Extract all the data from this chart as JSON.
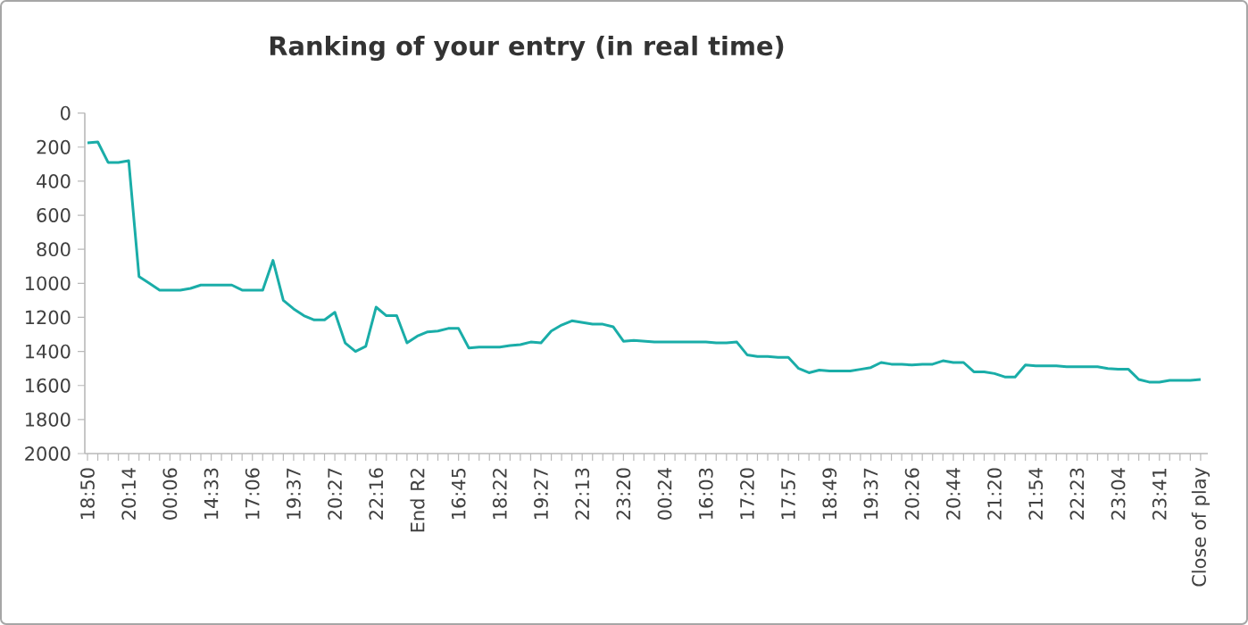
{
  "chart_data": {
    "type": "line",
    "title": "Ranking of your entry (in real time)",
    "categories": [
      "18:50",
      null,
      null,
      null,
      "20:14",
      null,
      null,
      null,
      "00:06",
      null,
      null,
      null,
      "14:33",
      null,
      null,
      null,
      "17:06",
      null,
      null,
      null,
      "19:37",
      null,
      null,
      null,
      "20:27",
      null,
      null,
      null,
      "22:16",
      null,
      null,
      null,
      "End R2",
      null,
      null,
      null,
      "16:45",
      null,
      null,
      null,
      "18:22",
      null,
      null,
      null,
      "19:27",
      null,
      null,
      null,
      "22:13",
      null,
      null,
      null,
      "23:20",
      null,
      null,
      null,
      "00:24",
      null,
      null,
      null,
      "16:03",
      null,
      null,
      null,
      "17:20",
      null,
      null,
      null,
      "17:57",
      null,
      null,
      null,
      "18:49",
      null,
      null,
      null,
      "19:37",
      null,
      null,
      null,
      "20:26",
      null,
      null,
      null,
      "20:44",
      null,
      null,
      null,
      "21:20",
      null,
      null,
      null,
      "21:54",
      null,
      null,
      null,
      "22:23",
      null,
      null,
      null,
      "23:04",
      null,
      null,
      null,
      "23:41",
      null,
      null,
      null,
      "Close of play"
    ],
    "values": [
      175,
      170,
      290,
      290,
      280,
      960,
      1000,
      1040,
      1040,
      1040,
      1030,
      1010,
      1010,
      1010,
      1010,
      1040,
      1040,
      1040,
      865,
      1100,
      1150,
      1190,
      1215,
      1215,
      1170,
      1350,
      1400,
      1370,
      1140,
      1190,
      1190,
      1350,
      1310,
      1285,
      1280,
      1265,
      1265,
      1380,
      1375,
      1375,
      1375,
      1365,
      1360,
      1345,
      1350,
      1280,
      1245,
      1220,
      1230,
      1240,
      1240,
      1255,
      1340,
      1335,
      1340,
      1345,
      1345,
      1345,
      1345,
      1345,
      1345,
      1350,
      1350,
      1345,
      1420,
      1430,
      1430,
      1435,
      1435,
      1500,
      1525,
      1510,
      1515,
      1515,
      1515,
      1505,
      1495,
      1465,
      1475,
      1475,
      1480,
      1475,
      1475,
      1455,
      1465,
      1465,
      1520,
      1520,
      1530,
      1550,
      1550,
      1480,
      1485,
      1485,
      1485,
      1490,
      1490,
      1490,
      1490,
      1500,
      1505,
      1505,
      1565,
      1580,
      1580,
      1570,
      1570,
      1570,
      1565
    ],
    "color": "#1aada8",
    "ylim": [
      2000,
      0
    ],
    "yticks": [
      0,
      200,
      400,
      600,
      800,
      1000,
      1200,
      1400,
      1600,
      1800,
      2000
    ]
  }
}
